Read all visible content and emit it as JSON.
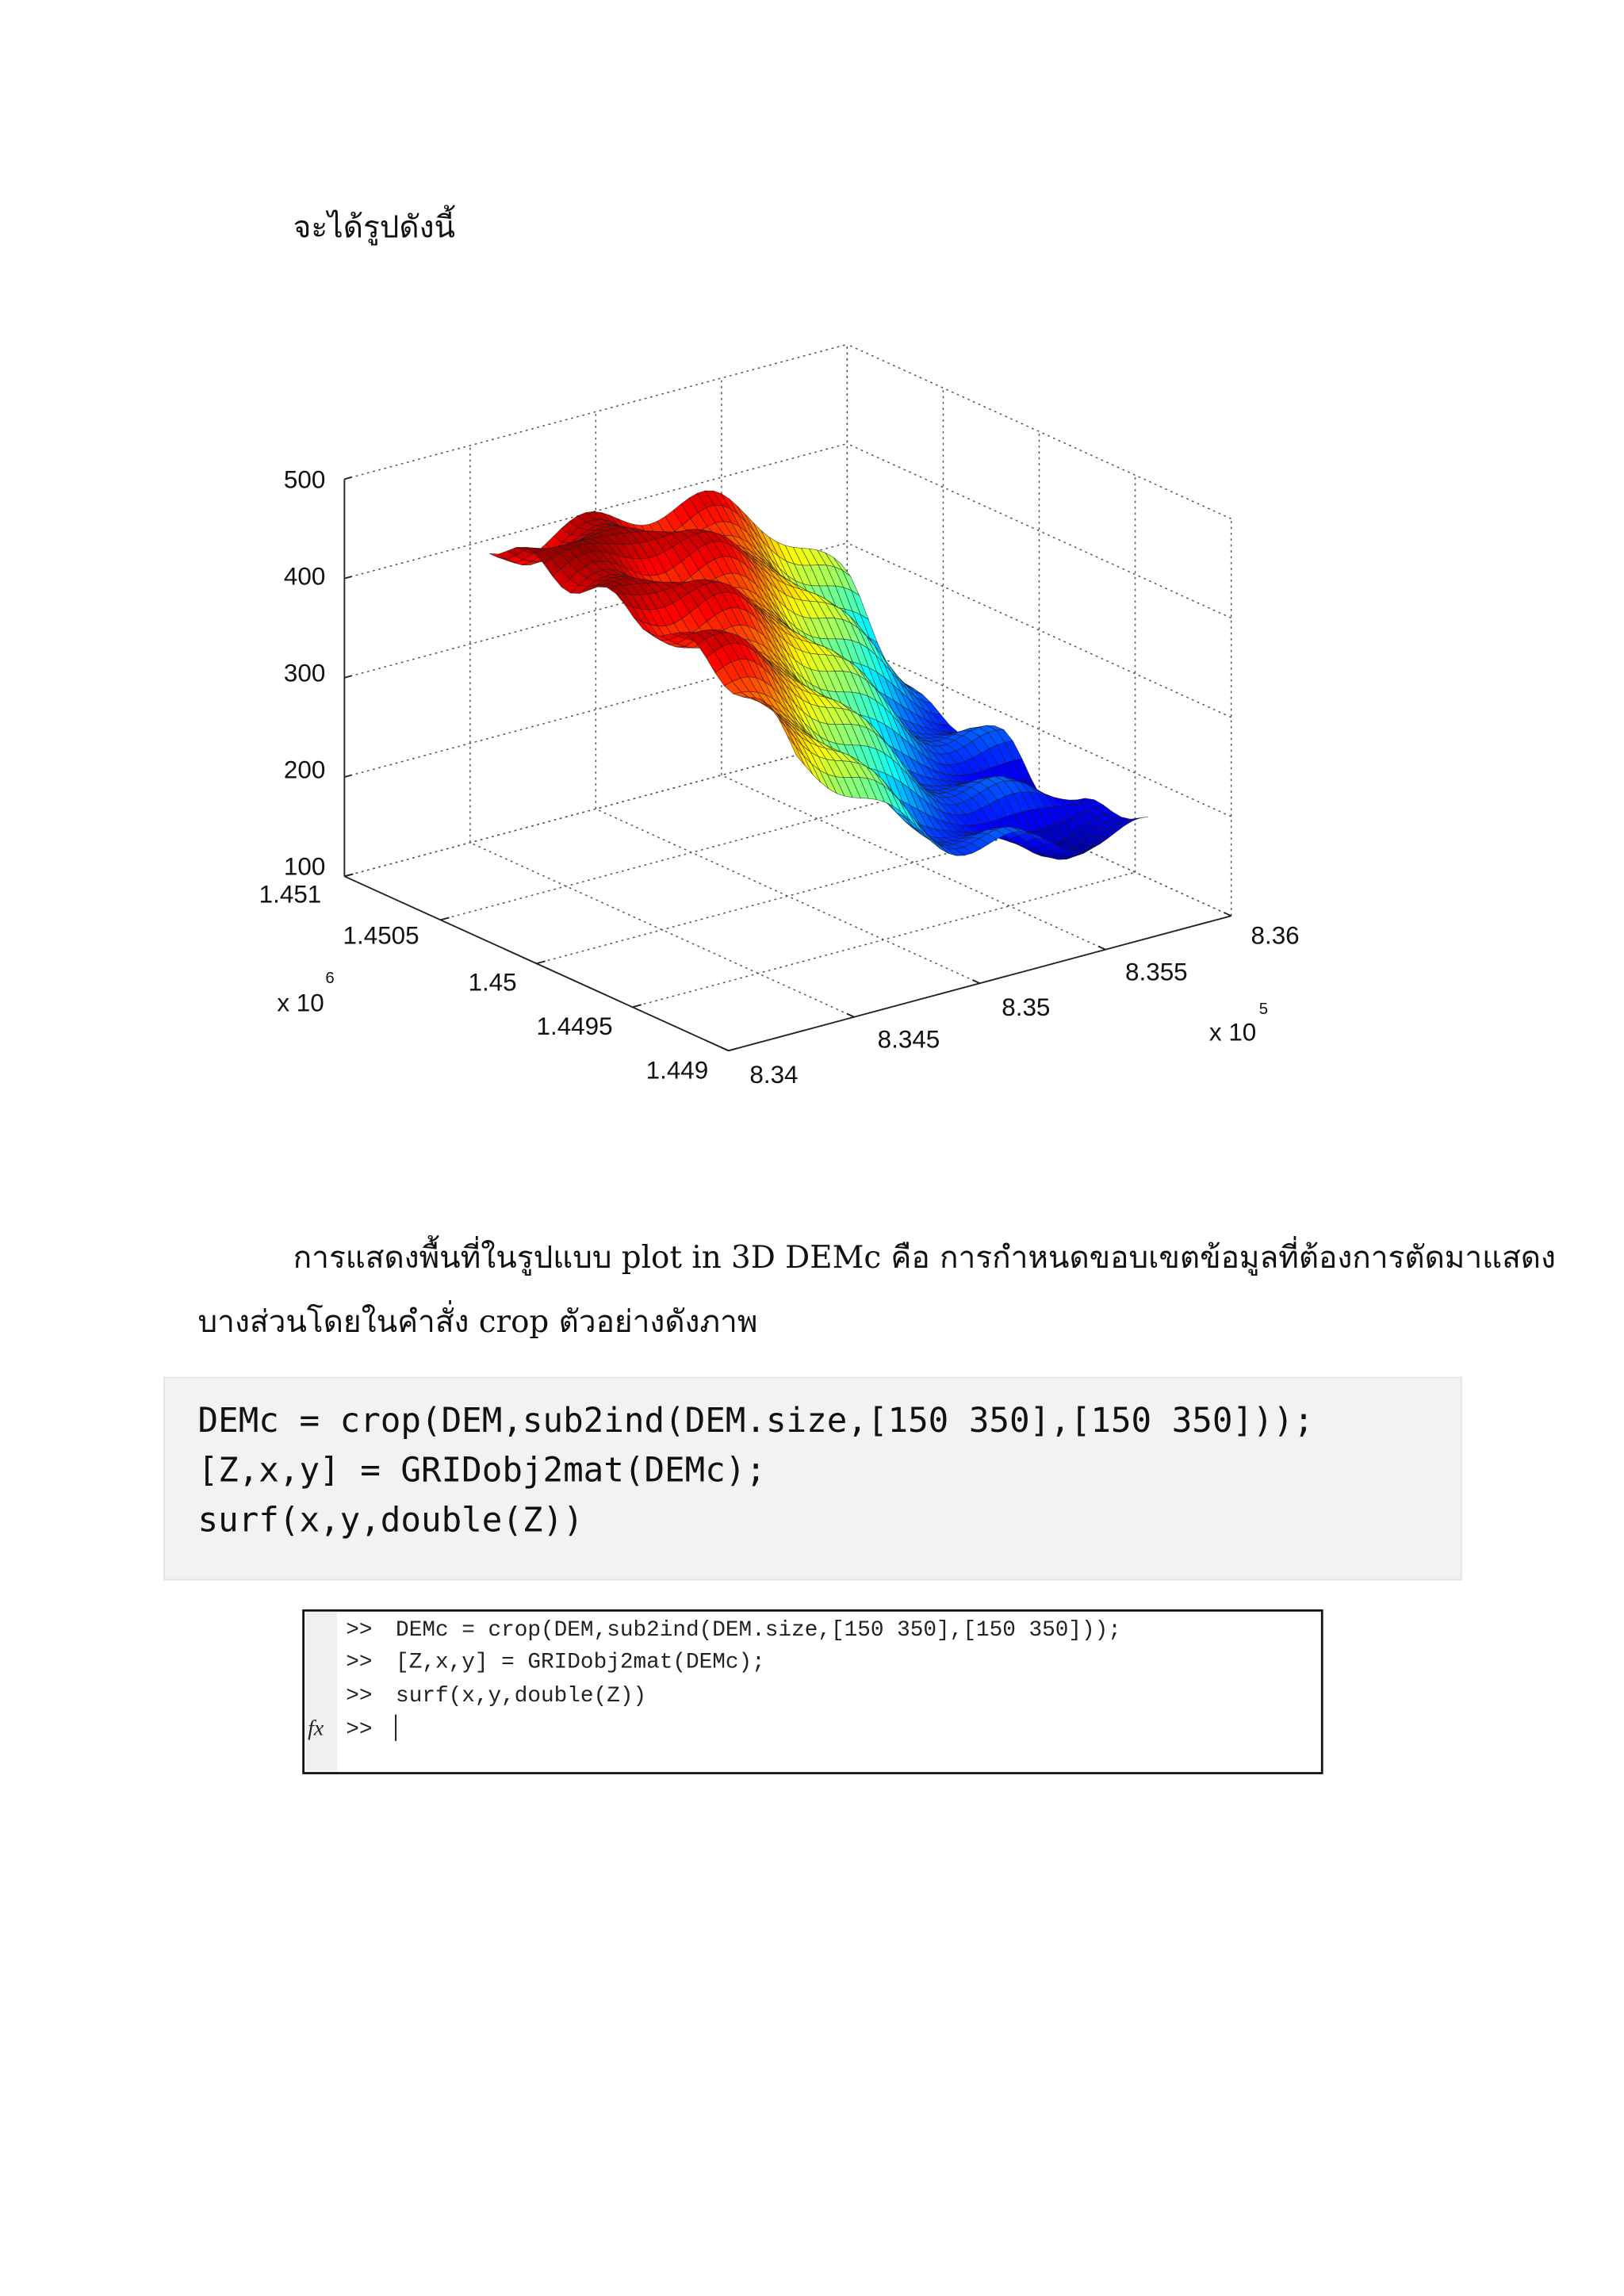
{
  "heading": "จะได้รูปดังนี้",
  "figure": {
    "z_ticks": [
      "500",
      "400",
      "300",
      "200",
      "100"
    ],
    "y_ticks": [
      "1.451",
      "1.4505",
      "1.45",
      "1.4495",
      "1.449"
    ],
    "y_multiplier": {
      "base": "x 10",
      "exponent": "6"
    },
    "x_ticks": [
      "8.34",
      "8.345",
      "8.35",
      "8.355",
      "8.36"
    ],
    "x_multiplier": {
      "base": "x 10",
      "exponent": "5"
    }
  },
  "paragraph": {
    "lines": [
      "การแสดงพื้นที่ในรูปแบบ plot in 3D DEMc คือ การกำหนดขอบเขตข้อมูลที่ต้องการตัดมาแสดง",
      "บางส่วนโดยในคำสั่ง crop ตัวอย่างดังภาพ"
    ]
  },
  "code_block": {
    "lines": [
      "DEMc = crop(DEM,sub2ind(DEM.size,[150 350],[150 350]));",
      "[Z,x,y] = GRIDobj2mat(DEMc);",
      "surf(x,y,double(Z))"
    ]
  },
  "console": {
    "lines": [
      {
        "prompt": ">>",
        "command": "DEMc = crop(DEM,sub2ind(DEM.size,[150 350],[150 350]));"
      },
      {
        "prompt": ">>",
        "command": "[Z,x,y] = GRIDobj2mat(DEMc);"
      },
      {
        "prompt": ">>",
        "command": "surf(x,y,double(Z))"
      }
    ],
    "fx": "fx",
    "last_prompt": ">>"
  }
}
